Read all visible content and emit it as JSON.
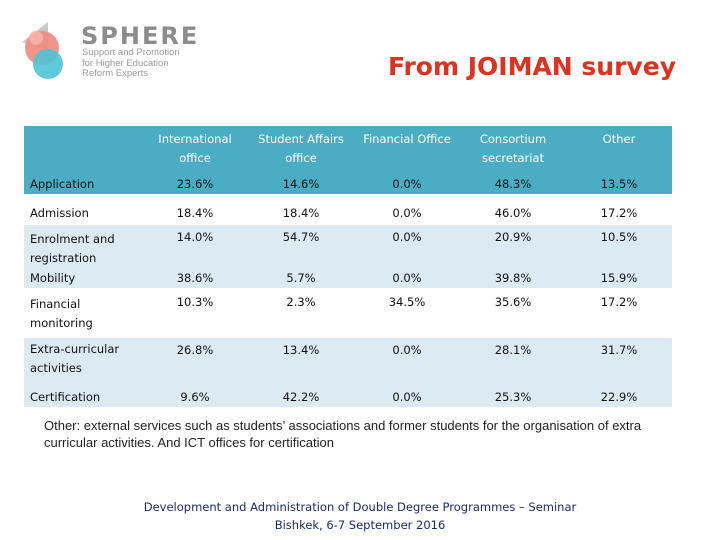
{
  "logo": {
    "name": "SPHERE",
    "tagline": [
      "Support and Promotion",
      "for Higher Education",
      "Reform Experts"
    ],
    "colors": {
      "coral": "#f08a7e",
      "cyan": "#4fc3d6",
      "grey": "#8c8c8c"
    }
  },
  "title": "From JOIMAN survey",
  "title_color": "#e0301e",
  "table": {
    "header_color": "#4badc4",
    "stripe_color": "#dbeaf3",
    "columns": [
      "International office",
      "Student Affairs office",
      "Financial Office",
      "Consortium secretariat",
      "Other"
    ],
    "rows": [
      {
        "label": "Application",
        "values": [
          "23.6%",
          "14.6%",
          "0.0%",
          "48.3%",
          "13.5%"
        ]
      },
      {
        "label": "Admission",
        "values": [
          "18.4%",
          "18.4%",
          "0.0%",
          "46.0%",
          "17.2%"
        ]
      },
      {
        "label": "Enrolment and registration",
        "values": [
          "14.0%",
          "54.7%",
          "0.0%",
          "20.9%",
          "10.5%"
        ]
      },
      {
        "label": "Mobility",
        "values": [
          "38.6%",
          "5.7%",
          "0.0%",
          "39.8%",
          "15.9%"
        ]
      },
      {
        "label": "Financial monitoring",
        "values": [
          "10.3%",
          "2.3%",
          "34.5%",
          "35.6%",
          "17.2%"
        ]
      },
      {
        "label": "Extra-curricular activities",
        "values": [
          "26.8%",
          "13.4%",
          "0.0%",
          "28.1%",
          "31.7%"
        ]
      },
      {
        "label": "Certification",
        "values": [
          "9.6%",
          "42.2%",
          "0.0%",
          "25.3%",
          "22.9%"
        ]
      }
    ]
  },
  "note": "Other:  external services such as students’ associations and former students for the organisation of extra curricular activities. And ICT offices for certification",
  "footer": {
    "line1": "Development and Administration of Double Degree Programmes – Seminar",
    "line2": "Bishkek, 6-7 September 2016"
  }
}
